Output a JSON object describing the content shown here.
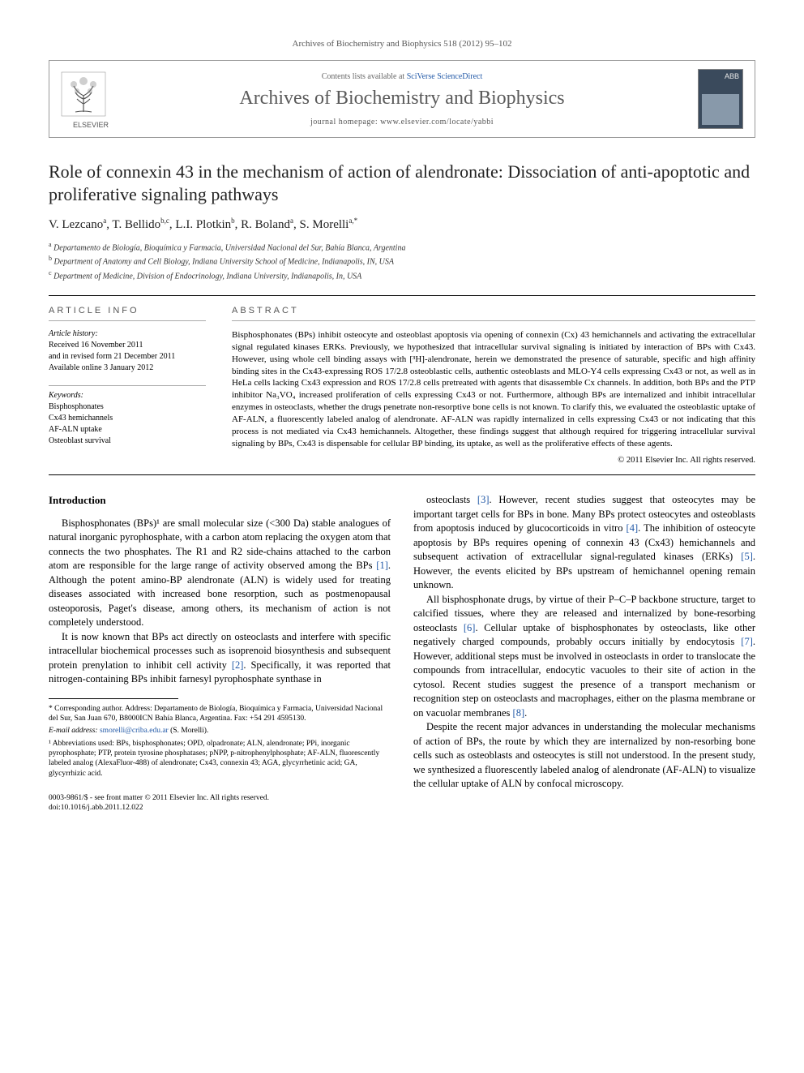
{
  "header": {
    "citation": "Archives of Biochemistry and Biophysics 518 (2012) 95–102",
    "contents_prefix": "Contents lists available at ",
    "contents_link": "SciVerse ScienceDirect",
    "journal_name": "Archives of Biochemistry and Biophysics",
    "homepage_prefix": "journal homepage: ",
    "homepage_url": "www.elsevier.com/locate/yabbi",
    "publisher_name": "ELSEVIER",
    "cover_label": "ABB"
  },
  "article": {
    "title": "Role of connexin 43 in the mechanism of action of alendronate: Dissociation of anti-apoptotic and proliferative signaling pathways",
    "authors_html": "V. Lezcano<sup>a</sup>, T. Bellido<sup>b,c</sup>, L.I. Plotkin<sup>b</sup>, R. Boland<sup>a</sup>, S. Morelli<sup>a,*</sup>",
    "affiliations": [
      {
        "sup": "a",
        "text": "Departamento de Biología, Bioquímica y Farmacia, Universidad Nacional del Sur, Bahía Blanca, Argentina"
      },
      {
        "sup": "b",
        "text": "Department of Anatomy and Cell Biology, Indiana University School of Medicine, Indianapolis, IN, USA"
      },
      {
        "sup": "c",
        "text": "Department of Medicine, Division of Endocrinology, Indiana University, Indianapolis, In, USA"
      }
    ]
  },
  "info": {
    "heading": "ARTICLE INFO",
    "history_label": "Article history:",
    "history": [
      "Received 16 November 2011",
      "and in revised form 21 December 2011",
      "Available online 3 January 2012"
    ],
    "keywords_label": "Keywords:",
    "keywords": [
      "Bisphosphonates",
      "Cx43 hemichannels",
      "AF-ALN uptake",
      "Osteoblast survival"
    ]
  },
  "abstract": {
    "heading": "ABSTRACT",
    "text": "Bisphosphonates (BPs) inhibit osteocyte and osteoblast apoptosis via opening of connexin (Cx) 43 hemichannels and activating the extracellular signal regulated kinases ERKs. Previously, we hypothesized that intracellular survival signaling is initiated by interaction of BPs with Cx43. However, using whole cell binding assays with [³H]-alendronate, herein we demonstrated the presence of saturable, specific and high affinity binding sites in the Cx43-expressing ROS 17/2.8 osteoblastic cells, authentic osteoblasts and MLO-Y4 cells expressing Cx43 or not, as well as in HeLa cells lacking Cx43 expression and ROS 17/2.8 cells pretreated with agents that disassemble Cx channels. In addition, both BPs and the PTP inhibitor Na₃VO₄ increased proliferation of cells expressing Cx43 or not. Furthermore, although BPs are internalized and inhibit intracellular enzymes in osteoclasts, whether the drugs penetrate non-resorptive bone cells is not known. To clarify this, we evaluated the osteoblastic uptake of AF-ALN, a fluorescently labeled analog of alendronate. AF-ALN was rapidly internalized in cells expressing Cx43 or not indicating that this process is not mediated via Cx43 hemichannels. Altogether, these findings suggest that although required for triggering intracellular survival signaling by BPs, Cx43 is dispensable for cellular BP binding, its uptake, as well as the proliferative effects of these agents.",
    "copyright": "© 2011 Elsevier Inc. All rights reserved."
  },
  "body": {
    "section_heading": "Introduction",
    "left_paras": [
      "Bisphosphonates (BPs)¹ are small molecular size (<300 Da) stable analogues of natural inorganic pyrophosphate, with a carbon atom replacing the oxygen atom that connects the two phosphates. The R1 and R2 side-chains attached to the carbon atom are responsible for the large range of activity observed among the BPs [1]. Although the potent amino-BP alendronate (ALN) is widely used for treating diseases associated with increased bone resorption, such as postmenopausal osteoporosis, Paget's disease, among others, its mechanism of action is not completely understood.",
      "It is now known that BPs act directly on osteoclasts and interfere with specific intracellular biochemical processes such as isoprenoid biosynthesis and subsequent protein prenylation to inhibit cell activity [2]. Specifically, it was reported that nitrogen-containing BPs inhibit farnesyl pyrophosphate synthase in"
    ],
    "right_paras": [
      "osteoclasts [3]. However, recent studies suggest that osteocytes may be important target cells for BPs in bone. Many BPs protect osteocytes and osteoblasts from apoptosis induced by glucocorticoids in vitro [4]. The inhibition of osteocyte apoptosis by BPs requires opening of connexin 43 (Cx43) hemichannels and subsequent activation of extracellular signal-regulated kinases (ERKs) [5]. However, the events elicited by BPs upstream of hemichannel opening remain unknown.",
      "All bisphosphonate drugs, by virtue of their P–C–P backbone structure, target to calcified tissues, where they are released and internalized by bone-resorbing osteoclasts [6]. Cellular uptake of bisphosphonates by osteoclasts, like other negatively charged compounds, probably occurs initially by endocytosis [7]. However, additional steps must be involved in osteoclasts in order to translocate the compounds from intracellular, endocytic vacuoles to their site of action in the cytosol. Recent studies suggest the presence of a transport mechanism or recognition step on osteoclasts and macrophages, either on the plasma membrane or on vacuolar membranes [8].",
      "Despite the recent major advances in understanding the molecular mechanisms of action of BPs, the route by which they are internalized by non-resorbing bone cells such as osteoblasts and osteocytes is still not understood. In the present study, we synthesized a fluorescently labeled analog of alendronate (AF-ALN) to visualize the cellular uptake of ALN by confocal microscopy."
    ],
    "ref_links": [
      "[1]",
      "[2]",
      "[3]",
      "[4]",
      "[5]",
      "[6]",
      "[7]",
      "[8]"
    ]
  },
  "footnotes": {
    "corresponding": "* Corresponding author. Address: Departamento de Biología, Bioquímica y Farmacia, Universidad Nacional del Sur, San Juan 670, B8000ICN Bahía Blanca, Argentina. Fax: +54 291 4595130.",
    "email_label": "E-mail address: ",
    "email": "smorelli@criba.edu.ar",
    "email_suffix": " (S. Morelli).",
    "abbrev": "¹ Abbreviations used: BPs, bisphosphonates; OPD, olpadronate; ALN, alendronate; PPi, inorganic pyrophosphate; PTP, protein tyrosine phosphatases; pNPP, p-nitrophenylphosphate; AF-ALN, fluorescently labeled analog (AlexaFluor-488) of alendronate; Cx43, connexin 43; AGA, glycyrrhetinic acid; GA, glycyrrhizic acid."
  },
  "footer": {
    "issn_line": "0003-9861/$ - see front matter © 2011 Elsevier Inc. All rights reserved.",
    "doi_line": "doi:10.1016/j.abb.2011.12.022"
  },
  "colors": {
    "link": "#2259a7",
    "text": "#000000",
    "muted": "#555555",
    "border": "#999999"
  }
}
